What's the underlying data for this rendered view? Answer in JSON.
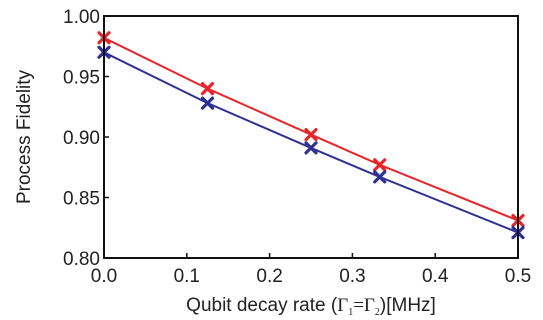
{
  "chart_data": {
    "type": "line",
    "title": "",
    "xlabel": {
      "prefix": "Qubit decay rate (",
      "gamma": "Γ",
      "sub1": "1",
      "equals": "=",
      "sub2": "2",
      "suffix": ")[MHz]"
    },
    "ylabel": "Process Fidelity",
    "xlim": [
      0.0,
      0.5
    ],
    "ylim": [
      0.8,
      1.0
    ],
    "x_ticks": [
      "0.0",
      "0.1",
      "0.2",
      "0.3",
      "0.4",
      "0.5"
    ],
    "y_ticks": [
      "0.80",
      "0.85",
      "0.90",
      "0.95",
      "1.00"
    ],
    "grid": false,
    "legend": "none",
    "marker": "x",
    "x": [
      0.0,
      0.125,
      0.25,
      0.333,
      0.5
    ],
    "series": [
      {
        "color": "#e8252b",
        "values": [
          0.982,
          0.94,
          0.902,
          0.877,
          0.831
        ]
      },
      {
        "color": "#2e3192",
        "values": [
          0.97,
          0.928,
          0.891,
          0.867,
          0.821
        ]
      }
    ]
  }
}
